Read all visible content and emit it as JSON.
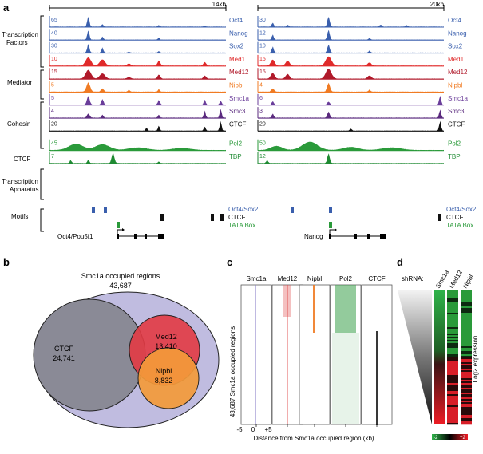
{
  "panels": {
    "a": "a",
    "b": "b",
    "c": "c",
    "d": "d"
  },
  "panel_a": {
    "scale_left": "14kb",
    "scale_right": "20kb",
    "group_labels": {
      "tf_line1": "Transcription",
      "tf_line2": "Factors",
      "mediator": "Mediator",
      "cohesin": "Cohesin",
      "ctcf": "CTCF",
      "ta_line1": "Transcription",
      "ta_line2": "Apparatus",
      "motifs": "Motifs"
    },
    "track_names": [
      "Oct4",
      "Nanog",
      "Sox2",
      "Med1",
      "Med12",
      "Nipbl",
      "Smc1a",
      "Smc3",
      "CTCF",
      "Pol2",
      "TBP"
    ],
    "track_colors": [
      "#3a5fad",
      "#3a5fad",
      "#3a5fad",
      "#e02a2a",
      "#b0192a",
      "#f07b23",
      "#6a3d9a",
      "#5a2a7e",
      "#111111",
      "#2a9a3a",
      "#1e8a32"
    ],
    "scales_left": [
      "65",
      "40",
      "30",
      "10",
      "15",
      "5",
      "5",
      "4",
      "20",
      "45",
      "7"
    ],
    "scales_right": [
      "30",
      "12",
      "10",
      "15",
      "15",
      "4",
      "6",
      "3",
      "20",
      "50",
      "12"
    ],
    "motif_labels": {
      "oct_sox": "Oct4/Sox2",
      "ctcf": "CTCF",
      "tata": "TATA Box"
    },
    "motif_colors": {
      "oct_sox": "#3a5fad",
      "ctcf": "#111111",
      "tata": "#2a9a3a"
    },
    "gene_left": "Oct4/Pou5f1",
    "gene_right": "Nanog"
  },
  "panel_b": {
    "title_line1": "Smc1a occupied regions",
    "title_line2": "43,687",
    "ctcf_label": "CTCF",
    "ctcf_value": "24,741",
    "med12_label": "Med12",
    "med12_value": "13,410",
    "nipbl_label": "Nipbl",
    "nipbl_value": "8,832",
    "colors": {
      "outer": "#c0bce0",
      "ctcf": "#8a8a96",
      "med12": "#e23a44",
      "nipbl": "#f39a3a"
    }
  },
  "panel_c": {
    "columns": [
      "Smc1a",
      "Med12",
      "Nipbl",
      "Pol2",
      "CTCF"
    ],
    "column_colors": [
      "#8a7fc8",
      "#e04a4a",
      "#f07b23",
      "#3aa04a",
      "#222222"
    ],
    "ylabel": "43,687 Smc1a occupied regions",
    "xlabel": "Distance from Smc1a occupied region (kb)",
    "tick_m5": "-5",
    "tick_0": "0",
    "tick_p5": "+5"
  },
  "panel_d": {
    "shrna_label": "shRNA:",
    "columns": [
      "Smc1a",
      "Med12",
      "Nipbl"
    ],
    "ylabel": "Log2 expression",
    "legend_min": "-2",
    "legend_max": "+2"
  }
}
